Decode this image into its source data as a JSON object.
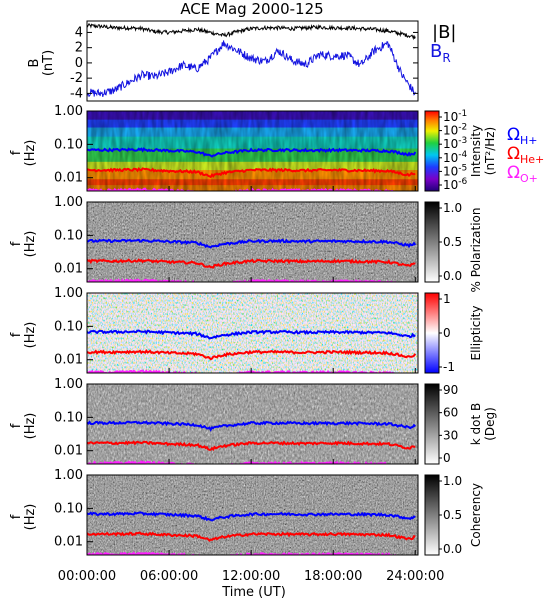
{
  "title": "ACE Mag 2000-125",
  "x_axis": {
    "label": "Time (UT)",
    "ticks": [
      "00:00:00",
      "06:00:00",
      "12:00:00",
      "18:00:00",
      "24:00:00"
    ],
    "hours": [
      0,
      6,
      12,
      18,
      24
    ],
    "range_hours": [
      0,
      24.2
    ]
  },
  "legend": {
    "b_total": "|B|",
    "b_r": "B",
    "b_r_sub": "R",
    "omega_h": "Ω",
    "omega_h_sub": "H+",
    "omega_he": "Ω",
    "omega_he_sub": "He+",
    "omega_o": "Ω",
    "omega_o_sub": "O+"
  },
  "colors": {
    "b_total": "#000000",
    "b_r": "#1515e0",
    "omega_h": "#0000ff",
    "omega_he": "#ff0000",
    "omega_o": "#ff20ff"
  },
  "panels": {
    "b": {
      "ylabel_1": "B",
      "ylabel_2": "(nT)",
      "yticks": [
        "4",
        "2",
        "0",
        "-2",
        "-4"
      ]
    },
    "intensity": {
      "ylabel_1": "f",
      "ylabel_2": "(Hz)",
      "yticks": [
        "1.00",
        "0.10",
        "0.01"
      ],
      "cbar_label_1": "Intensity",
      "cbar_label_2": "(nT²/Hz)",
      "cbar_ticks": [
        {
          "base": "10",
          "exp": "-1"
        },
        {
          "base": "10",
          "exp": "-2"
        },
        {
          "base": "10",
          "exp": "-3"
        },
        {
          "base": "10",
          "exp": "-4"
        },
        {
          "base": "10",
          "exp": "-5"
        },
        {
          "base": "10",
          "exp": "-6"
        }
      ]
    },
    "polarization": {
      "ylabel_1": "f",
      "ylabel_2": "(Hz)",
      "yticks": [
        "1.00",
        "0.10",
        "0.01"
      ],
      "cbar_label": "% Polarization",
      "cbar_ticks": [
        "1.0",
        "0.5",
        "0.0"
      ]
    },
    "ellipticity": {
      "ylabel_1": "f",
      "ylabel_2": "(Hz)",
      "yticks": [
        "1.00",
        "0.10",
        "0.01"
      ],
      "cbar_label": "Ellipticity",
      "cbar_ticks": [
        "1",
        "0",
        "-1"
      ]
    },
    "kdotb": {
      "ylabel_1": "f",
      "ylabel_2": "(Hz)",
      "yticks": [
        "1.00",
        "0.10",
        "0.01"
      ],
      "cbar_label_1": "k dot B",
      "cbar_label_2": "(Deg)",
      "cbar_ticks": [
        "90",
        "60",
        "30",
        "0"
      ]
    },
    "coherency": {
      "ylabel_1": "f",
      "ylabel_2": "(Hz)",
      "yticks": [
        "1.00",
        "0.10",
        "0.01"
      ],
      "cbar_label": "Coherency",
      "cbar_ticks": [
        "1.0",
        "0.5",
        "0.0"
      ]
    }
  },
  "chart_data": [
    {
      "type": "line",
      "title": "ACE Mag 2000-125",
      "ylabel": "B (nT)",
      "xlabel": "Time (UT)",
      "ylim": [
        -5,
        5.5
      ],
      "x_hours": [
        0,
        1,
        2,
        3,
        4,
        5,
        6,
        7,
        8,
        9,
        10,
        11,
        12,
        13,
        14,
        15,
        16,
        17,
        18,
        19,
        20,
        21,
        22,
        23,
        24
      ],
      "series": [
        {
          "name": "|B|",
          "values": [
            4.9,
            4.8,
            4.6,
            4.6,
            4.5,
            4.1,
            4.0,
            4.2,
            4.4,
            4.0,
            3.6,
            4.1,
            4.5,
            4.6,
            4.6,
            4.5,
            4.6,
            4.7,
            4.6,
            4.6,
            4.5,
            4.4,
            4.2,
            3.8,
            3.4
          ]
        },
        {
          "name": "B_R",
          "values": [
            -3.9,
            -4.0,
            -3.6,
            -2.6,
            -1.6,
            -1.8,
            -1.2,
            -0.3,
            -0.8,
            0.6,
            2.6,
            1.6,
            0.6,
            0.2,
            1.6,
            0.3,
            -0.2,
            1.1,
            0.9,
            1.0,
            -0.3,
            1.6,
            2.6,
            -1.5,
            -4.1
          ]
        }
      ]
    },
    {
      "type": "heatmap",
      "ylabel": "f (Hz)",
      "xlabel": "Time (UT)",
      "ylim": [
        0.004,
        1.0
      ],
      "y_scale": "log",
      "colorbar": "Intensity (nT²/Hz), 1e-6 to 1e-1",
      "x_hours": [
        0,
        2,
        4,
        6,
        8,
        9,
        10,
        12,
        14,
        16,
        18,
        20,
        22,
        23.5,
        24
      ],
      "series": [
        {
          "name": "Ω_H+",
          "values": [
            0.068,
            0.068,
            0.07,
            0.065,
            0.06,
            0.045,
            0.055,
            0.067,
            0.068,
            0.066,
            0.067,
            0.066,
            0.064,
            0.05,
            0.055
          ]
        },
        {
          "name": "Ω_He+",
          "values": [
            0.017,
            0.017,
            0.0175,
            0.016,
            0.015,
            0.011,
            0.014,
            0.017,
            0.017,
            0.0165,
            0.017,
            0.0165,
            0.016,
            0.012,
            0.014
          ]
        },
        {
          "name": "Ω_O+",
          "values": [
            0.0042,
            0.0042,
            0.0044,
            0.0041,
            0.0038,
            0.0029,
            0.0035,
            0.0042,
            0.0042,
            0.0041,
            0.0042,
            0.0041,
            0.004,
            0.0031,
            0.0034
          ]
        }
      ]
    },
    {
      "type": "heatmap",
      "ylabel": "f (Hz)",
      "colorbar": "% Polarization, 0.0 to 1.0",
      "y_scale": "log"
    },
    {
      "type": "heatmap",
      "ylabel": "f (Hz)",
      "colorbar": "Ellipticity, -1 to 1",
      "y_scale": "log"
    },
    {
      "type": "heatmap",
      "ylabel": "f (Hz)",
      "colorbar": "k dot B (Deg), 0 to 90",
      "y_scale": "log"
    },
    {
      "type": "heatmap",
      "ylabel": "f (Hz)",
      "colorbar": "Coherency, 0.0 to 1.0",
      "y_scale": "log"
    }
  ]
}
